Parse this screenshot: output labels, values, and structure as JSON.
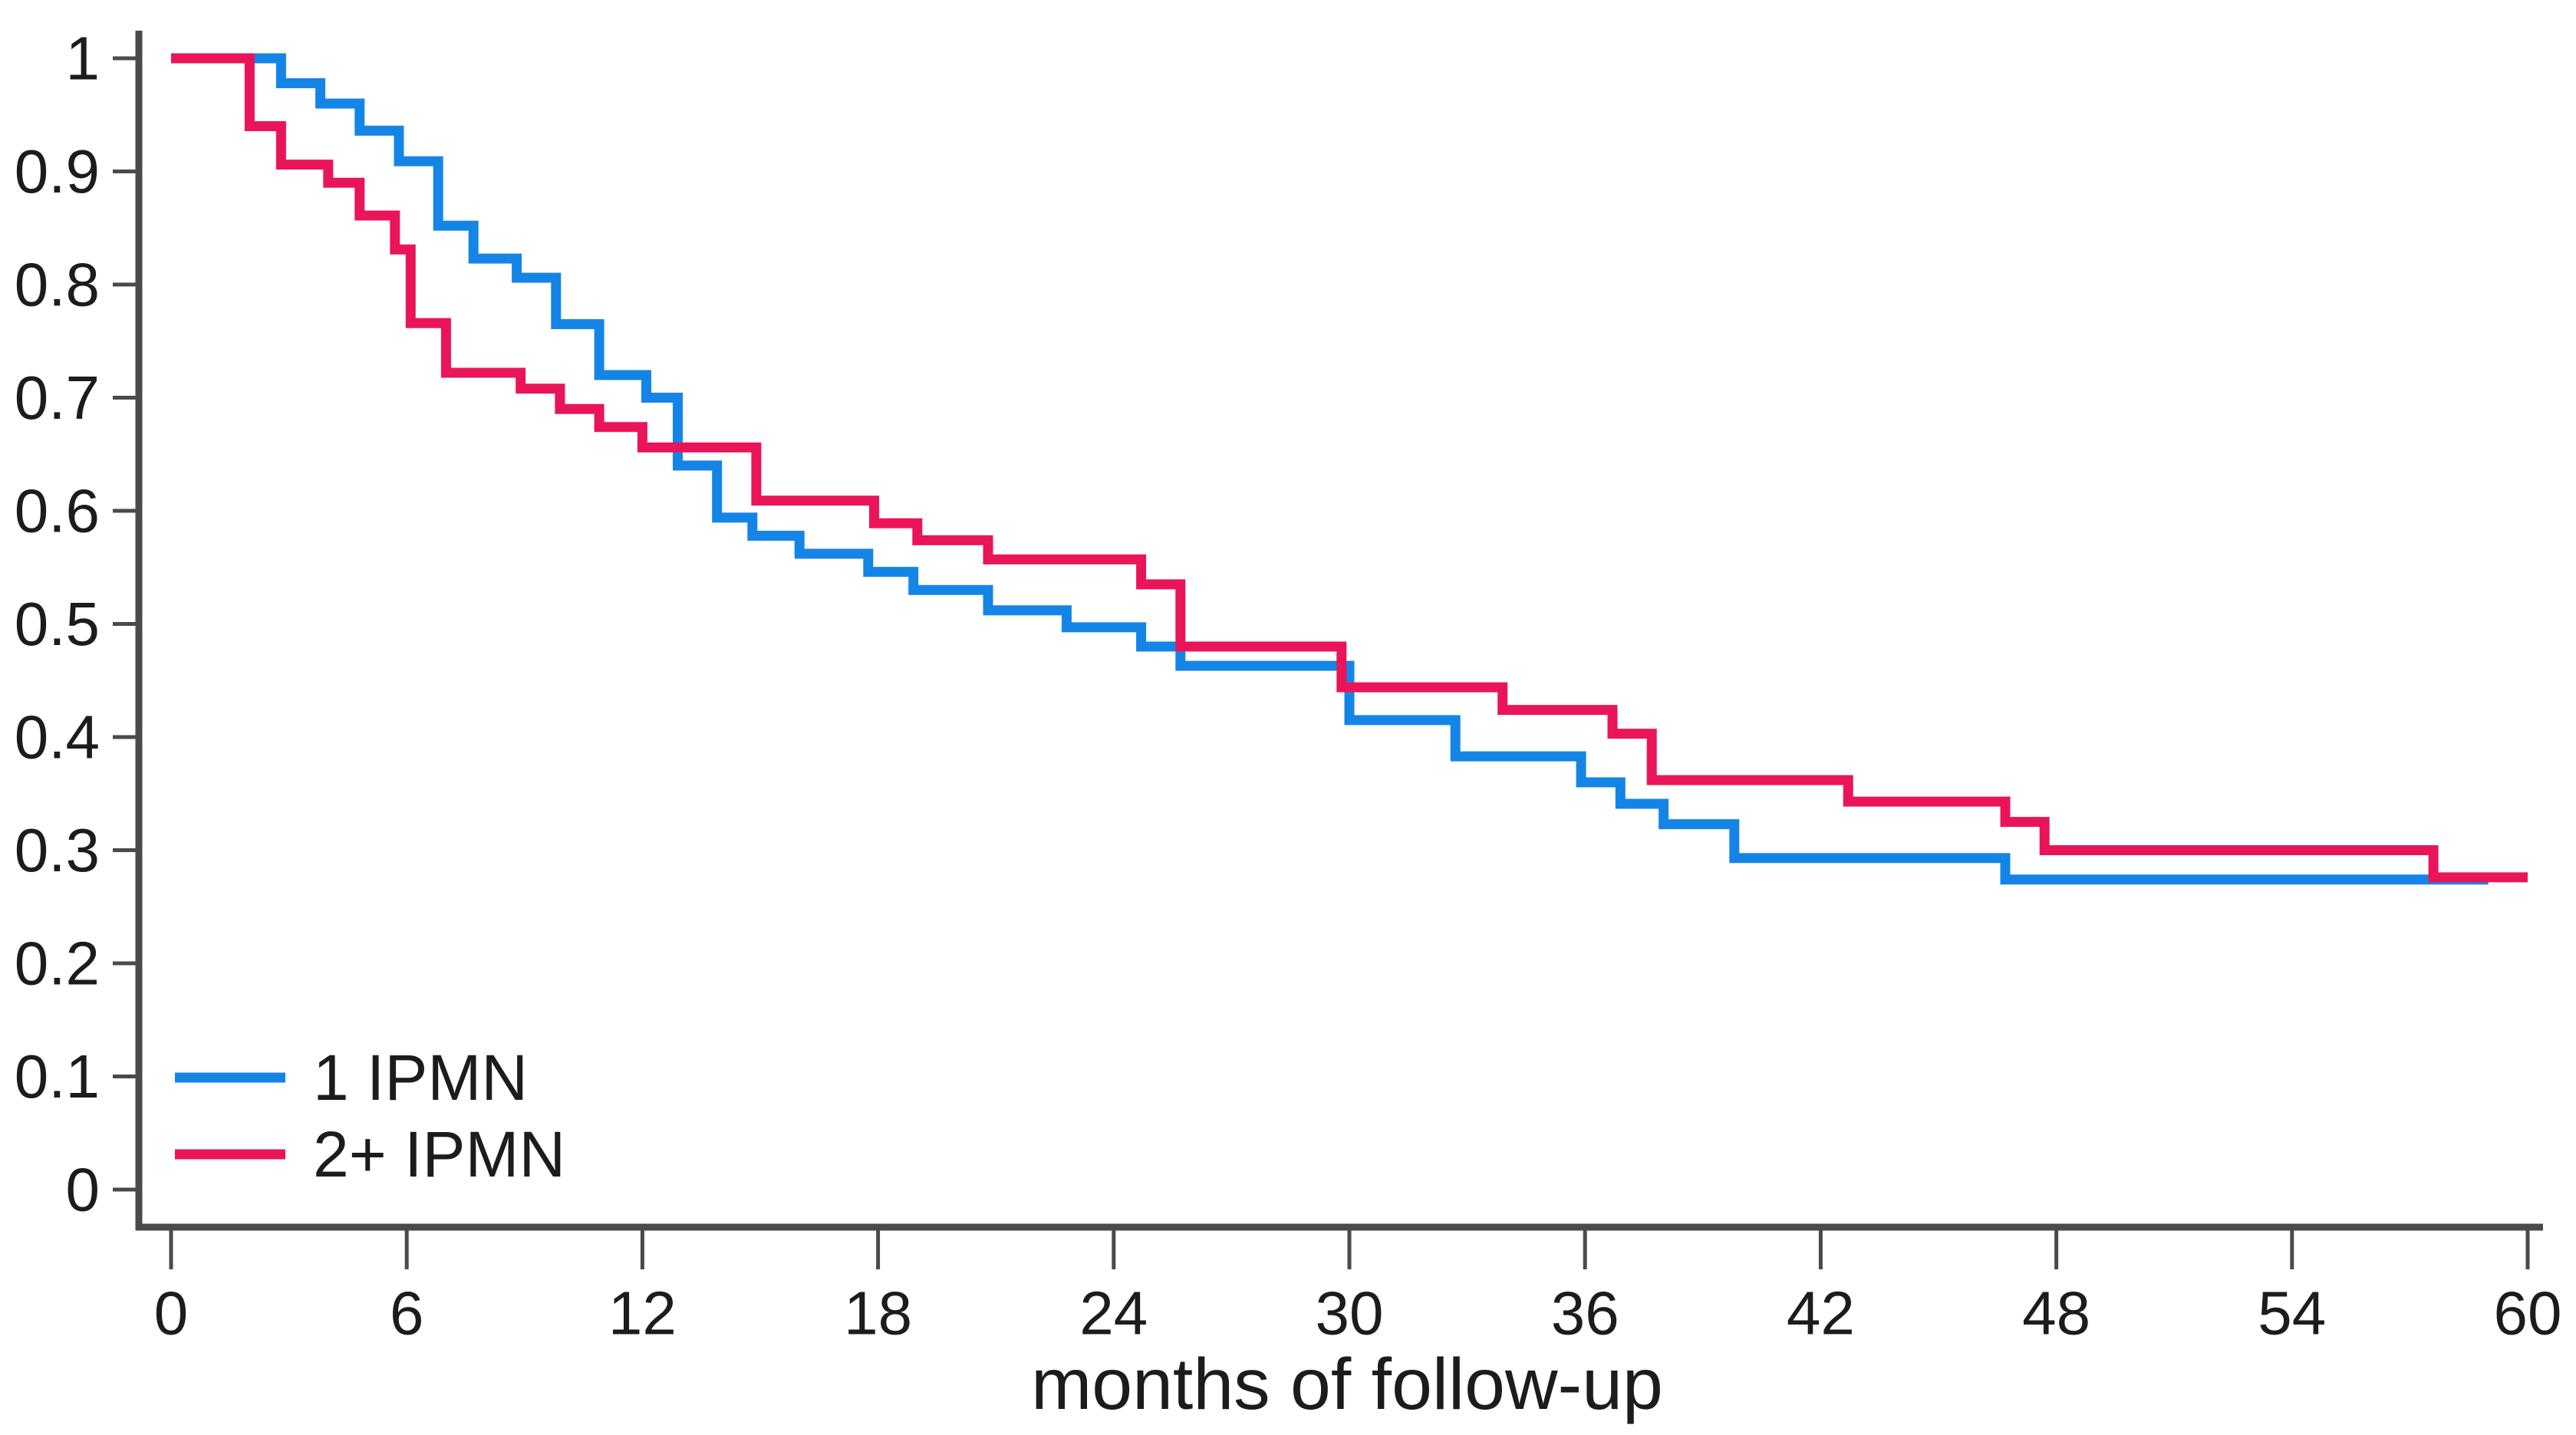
{
  "chart_data": {
    "type": "line",
    "subtype": "kaplan-meier-step",
    "title": "",
    "xlabel": "months of follow-up",
    "ylabel": "",
    "xlim": [
      0,
      60
    ],
    "ylim": [
      0,
      1
    ],
    "grid": false,
    "legend_position": "inside-bottom-left",
    "x_ticks": [
      0,
      6,
      12,
      18,
      24,
      30,
      36,
      42,
      48,
      54,
      60
    ],
    "x_tick_labels": [
      "0",
      "6",
      "12",
      "18",
      "24",
      "30",
      "36",
      "42",
      "48",
      "54",
      "60"
    ],
    "y_ticks": [
      0,
      0.1,
      0.2,
      0.3,
      0.4,
      0.5,
      0.6,
      0.7,
      0.8,
      0.9,
      1
    ],
    "y_tick_labels": [
      "0",
      "0.1",
      "0.2",
      "0.3",
      "0.4",
      "0.5",
      "0.6",
      "0.7",
      "0.8",
      "0.9",
      "1"
    ],
    "colors": {
      "series_1_ipmn": "#1485E6",
      "series_2plus_ipmn": "#EA1559",
      "axis": "#4a4a4a",
      "text": "#1c1c1c",
      "background": "#ffffff"
    },
    "series": [
      {
        "name": "1 IPMN",
        "color": "#1485E6",
        "end_month": 59.0,
        "points": [
          [
            0,
            1.0
          ],
          [
            2.8,
            0.978
          ],
          [
            3.8,
            0.96
          ],
          [
            4.8,
            0.936
          ],
          [
            5.8,
            0.909
          ],
          [
            6.8,
            0.852
          ],
          [
            7.7,
            0.823
          ],
          [
            8.8,
            0.806
          ],
          [
            9.8,
            0.765
          ],
          [
            10.9,
            0.72
          ],
          [
            12.1,
            0.7
          ],
          [
            12.9,
            0.64
          ],
          [
            13.9,
            0.594
          ],
          [
            14.8,
            0.578
          ],
          [
            16.0,
            0.562
          ],
          [
            17.75,
            0.546
          ],
          [
            18.9,
            0.53
          ],
          [
            20.8,
            0.512
          ],
          [
            22.8,
            0.497
          ],
          [
            24.7,
            0.48
          ],
          [
            25.7,
            0.463
          ],
          [
            30.0,
            0.415
          ],
          [
            32.7,
            0.383
          ],
          [
            35.9,
            0.36
          ],
          [
            36.9,
            0.341
          ],
          [
            38.0,
            0.323
          ],
          [
            39.8,
            0.293
          ],
          [
            46.7,
            0.274
          ]
        ]
      },
      {
        "name": "2+ IPMN",
        "color": "#EA1559",
        "end_month": 60.0,
        "points": [
          [
            0,
            1.0
          ],
          [
            2.0,
            0.94
          ],
          [
            2.8,
            0.906
          ],
          [
            4.0,
            0.89
          ],
          [
            4.8,
            0.861
          ],
          [
            5.7,
            0.831
          ],
          [
            6.1,
            0.766
          ],
          [
            7.0,
            0.722
          ],
          [
            8.9,
            0.708
          ],
          [
            9.9,
            0.69
          ],
          [
            10.9,
            0.674
          ],
          [
            12.0,
            0.656
          ],
          [
            14.9,
            0.609
          ],
          [
            17.9,
            0.589
          ],
          [
            19.0,
            0.574
          ],
          [
            20.8,
            0.557
          ],
          [
            24.7,
            0.535
          ],
          [
            25.7,
            0.48
          ],
          [
            29.8,
            0.444
          ],
          [
            33.9,
            0.424
          ],
          [
            36.7,
            0.403
          ],
          [
            37.7,
            0.362
          ],
          [
            42.7,
            0.343
          ],
          [
            46.7,
            0.325
          ],
          [
            47.7,
            0.3
          ],
          [
            57.6,
            0.276
          ]
        ]
      }
    ]
  }
}
